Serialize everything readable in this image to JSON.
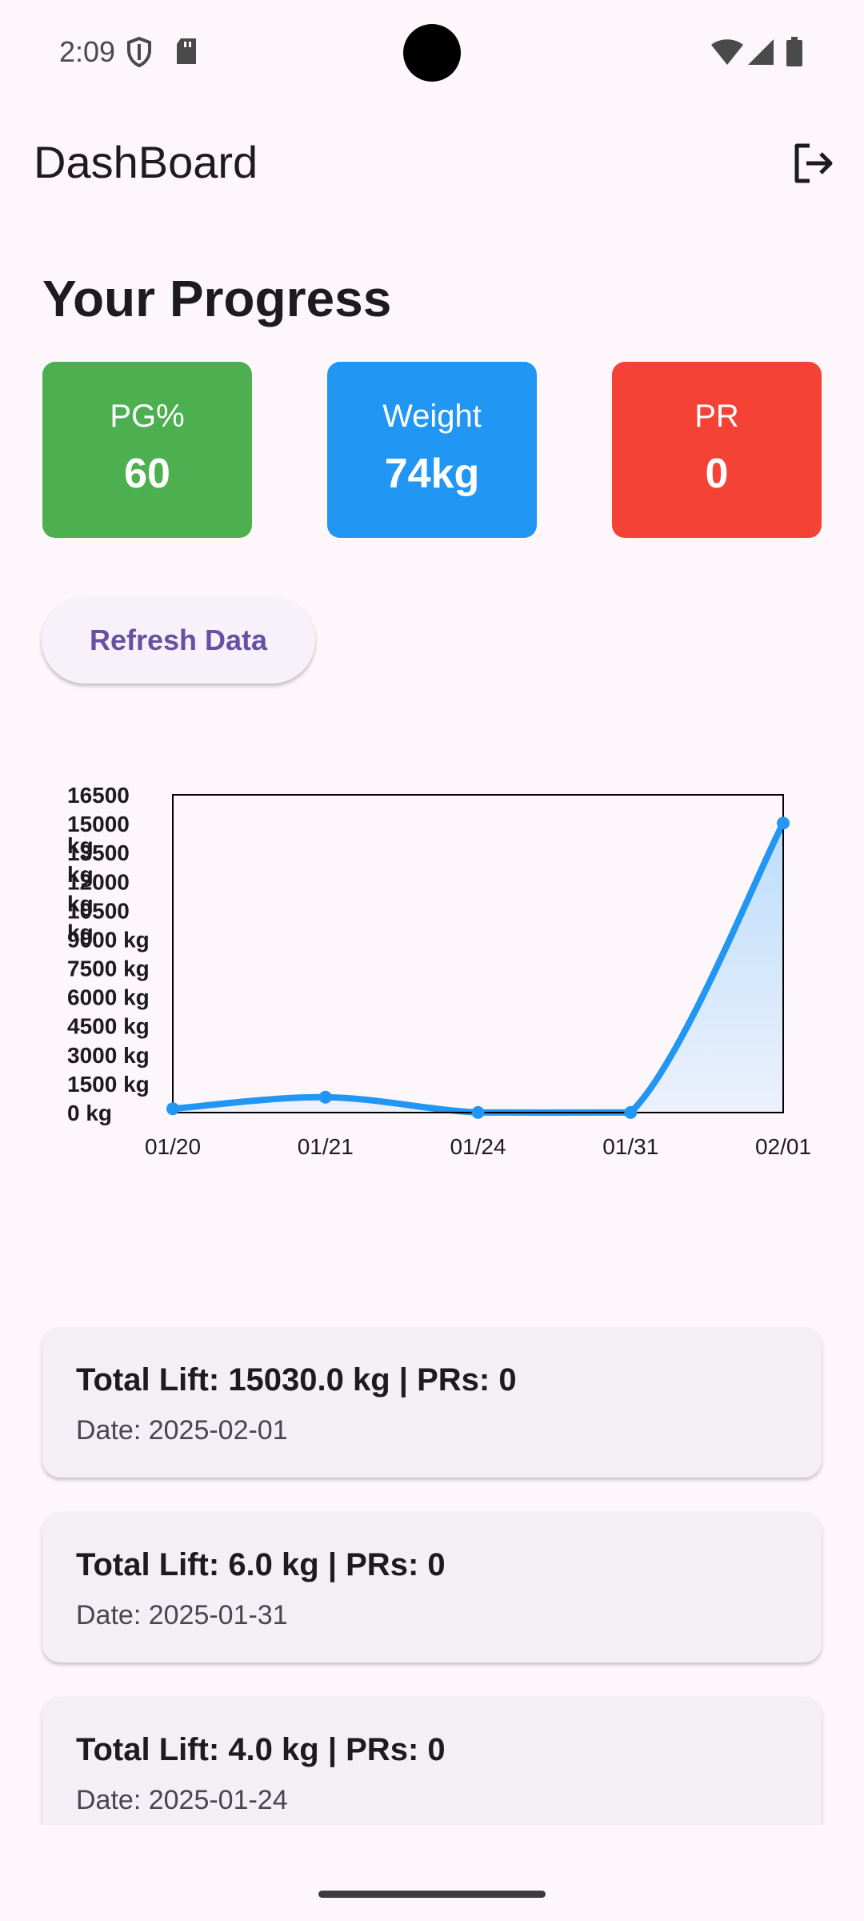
{
  "status_bar": {
    "time": "2:09"
  },
  "app_bar": {
    "title": "DashBoard",
    "logout_icon": "logout-icon"
  },
  "progress": {
    "title": "Your Progress",
    "cards": [
      {
        "label": "PG%",
        "value": "60",
        "color": "#4caf50"
      },
      {
        "label": "Weight",
        "value": "74kg",
        "color": "#2196f3"
      },
      {
        "label": "PR",
        "value": "0",
        "color": "#f44336"
      }
    ]
  },
  "refresh_button": {
    "label": "Refresh Data"
  },
  "chart_data": {
    "type": "area",
    "x": [
      "01/20",
      "01/21",
      "01/24",
      "01/31",
      "02/01"
    ],
    "values": [
      200,
      800,
      4,
      6,
      15030
    ],
    "y_ticks": [
      "0 kg",
      "1500 kg",
      "3000 kg",
      "4500 kg",
      "6000 kg",
      "7500 kg",
      "9000 kg",
      "10500 kg",
      "12000 kg",
      "13500 kg",
      "15000 kg",
      "16500"
    ],
    "ylim": [
      0,
      16500
    ],
    "line_color": "#2196f3",
    "fill_color": "#bbdefb",
    "title": "",
    "xlabel": "",
    "ylabel": ""
  },
  "history": [
    {
      "title": "Total Lift: 15030.0 kg | PRs: 0",
      "date": "Date: 2025-02-01"
    },
    {
      "title": "Total Lift: 6.0 kg | PRs: 0",
      "date": "Date: 2025-01-31"
    },
    {
      "title": "Total Lift: 4.0 kg | PRs: 0",
      "date": "Date: 2025-01-24"
    }
  ]
}
